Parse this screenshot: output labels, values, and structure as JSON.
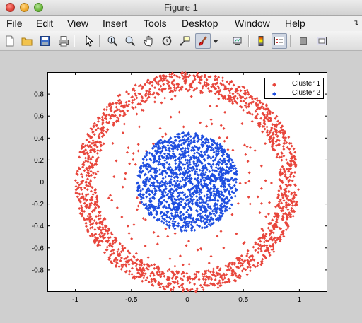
{
  "window": {
    "title": "Figure 1"
  },
  "menubar": {
    "items": [
      "File",
      "Edit",
      "View",
      "Insert",
      "Tools",
      "Desktop",
      "Window",
      "Help"
    ]
  },
  "toolbar": {
    "icons": [
      "new-figure-icon",
      "open-file-icon",
      "save-icon",
      "print-icon",
      "select-arrow-icon",
      "zoom-in-icon",
      "zoom-out-icon",
      "pan-hand-icon",
      "rotate-3d-icon",
      "data-cursor-icon",
      "brush-icon",
      "brush-dropdown-icon",
      "link-plot-icon",
      "colorbar-icon",
      "legend-icon",
      "hide-plot-tools-icon",
      "show-plot-tools-icon"
    ]
  },
  "chart_data": {
    "type": "scatter",
    "title": "",
    "xlabel": "",
    "ylabel": "",
    "xlim": [
      -1.25,
      1.25
    ],
    "ylim": [
      -1.0,
      1.0
    ],
    "xticks": [
      -1,
      -0.5,
      0,
      0.5,
      1
    ],
    "xtick_labels": [
      "-1",
      "-0.5",
      "0",
      "0.5",
      "1"
    ],
    "yticks": [
      -0.8,
      -0.6,
      -0.4,
      -0.2,
      0,
      0.2,
      0.4,
      0.6,
      0.8
    ],
    "ytick_labels": [
      "-0.8",
      "-0.6",
      "-0.4",
      "-0.2",
      "0",
      "0.2",
      "0.4",
      "0.6",
      "0.8"
    ],
    "grid": false,
    "legend_position": "top-right",
    "marker": "diamond",
    "series": [
      {
        "name": "Cluster 1",
        "color": "#e8463c",
        "shape": "ring",
        "center": [
          0,
          0
        ],
        "radius_range": [
          0.82,
          1.0
        ],
        "outliers_radius_range": [
          0.45,
          0.82
        ]
      },
      {
        "name": "Cluster 2",
        "color": "#1f4fe0",
        "shape": "disk",
        "center": [
          0,
          0
        ],
        "radius": 0.45
      }
    ]
  }
}
